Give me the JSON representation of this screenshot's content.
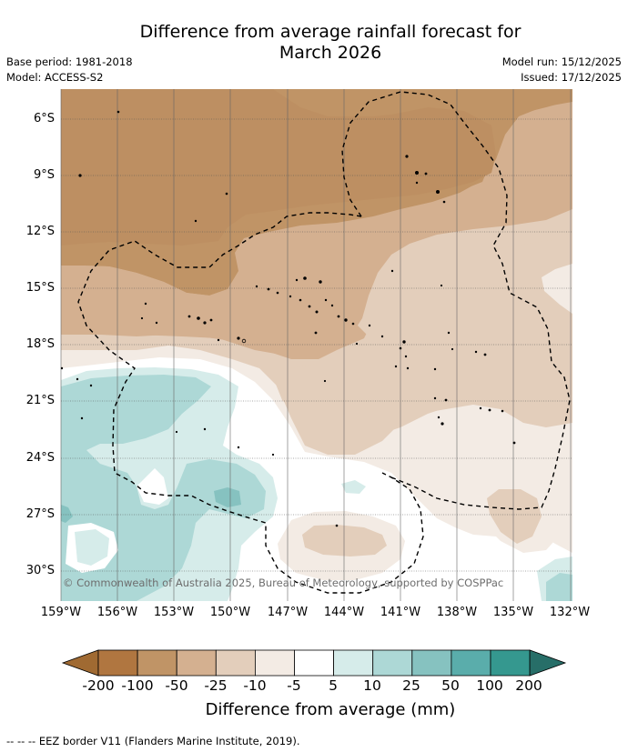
{
  "title": "Difference from average rainfall forecast for\nMarch 2026",
  "base_period": "Base period: 1981-2018",
  "model": "Model: ACCESS-S2",
  "model_run": "Model run: 15/12/2025",
  "issued": "Issued: 17/12/2025",
  "lat_labels": [
    "6°S",
    "9°S",
    "12°S",
    "15°S",
    "18°S",
    "21°S",
    "24°S",
    "27°S",
    "30°S"
  ],
  "lon_labels": [
    "159°W",
    "156°W",
    "153°W",
    "150°W",
    "147°W",
    "144°W",
    "141°W",
    "138°W",
    "135°W",
    "132°W"
  ],
  "copyright": "© Commonwealth of Australia 2025, Bureau of Meteorology, supported by COSPPac",
  "colorbar": {
    "ticks": [
      "-200",
      "-100",
      "-50",
      "-25",
      "-10",
      "-5",
      "5",
      "10",
      "25",
      "50",
      "100",
      "200"
    ],
    "colors": [
      "#a06a32",
      "#b07640",
      "#c09466",
      "#d4b090",
      "#e3cebb",
      "#f3ebe4",
      "#ffffff",
      "#d6ecea",
      "#add8d6",
      "#86c2c0",
      "#5aadab",
      "#35988f",
      "#276e68"
    ],
    "title": "Difference from average (mm)"
  },
  "footnote": "--  --  -- EEZ border V11 (Flanders Marine Institute, 2019)."
}
